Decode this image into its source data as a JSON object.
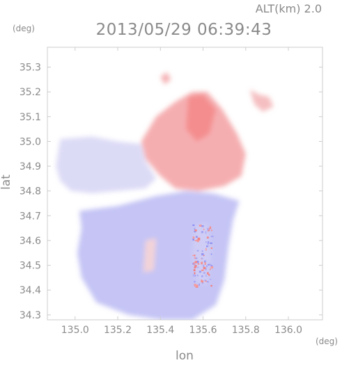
{
  "header": {
    "altitude_label": "ALT(km) 2.0",
    "timestamp": "2013/05/29 06:39:43"
  },
  "chart_data": {
    "type": "heatmap",
    "title": "2013/05/29 06:39:43",
    "subtitle": "ALT(km) 2.0",
    "xlabel": "lon",
    "ylabel": "lat",
    "x_unit": "(deg)",
    "y_unit": "(deg)",
    "xlim": [
      134.87,
      136.16
    ],
    "ylim": [
      34.28,
      35.38
    ],
    "x_ticks": [
      135.0,
      135.2,
      135.4,
      135.6,
      135.8,
      136.0
    ],
    "x_tick_labels": [
      "135.0",
      "135.2",
      "135.4",
      "135.6",
      "135.8",
      "136.0"
    ],
    "y_ticks": [
      34.3,
      34.4,
      34.5,
      34.6,
      34.7,
      34.8,
      34.9,
      35.0,
      35.1,
      35.2,
      35.3
    ],
    "y_tick_labels": [
      "34.3",
      "34.4",
      "34.5",
      "34.6",
      "34.7",
      "34.8",
      "34.9",
      "35.0",
      "35.1",
      "35.2",
      "35.3"
    ],
    "grid": false,
    "colors": {
      "toward": "#f47a7a",
      "neutral": "#f4f2f6",
      "away": "#8c8cf2",
      "frame": "#cccccc",
      "text": "#8a8a8a"
    },
    "regions": [
      {
        "name": "north-receding",
        "sign": "positive",
        "intensity": 0.6,
        "polygon": [
          [
            135.31,
            35.0
          ],
          [
            135.38,
            35.1
          ],
          [
            135.47,
            35.16
          ],
          [
            135.55,
            35.2
          ],
          [
            135.62,
            35.2
          ],
          [
            135.69,
            35.13
          ],
          [
            135.76,
            35.03
          ],
          [
            135.8,
            34.95
          ],
          [
            135.78,
            34.86
          ],
          [
            135.7,
            34.82
          ],
          [
            135.58,
            34.8
          ],
          [
            135.47,
            34.81
          ],
          [
            135.4,
            34.86
          ],
          [
            135.33,
            34.93
          ]
        ]
      },
      {
        "name": "north-receding-core",
        "sign": "positive",
        "intensity": 0.85,
        "polygon": [
          [
            135.53,
            35.18
          ],
          [
            135.6,
            35.19
          ],
          [
            135.66,
            35.13
          ],
          [
            135.63,
            35.03
          ],
          [
            135.57,
            35.0
          ],
          [
            135.52,
            35.05
          ]
        ]
      },
      {
        "name": "northeast-patch",
        "sign": "positive",
        "intensity": 0.45,
        "polygon": [
          [
            135.82,
            35.21
          ],
          [
            135.86,
            35.19
          ],
          [
            135.91,
            35.18
          ],
          [
            135.93,
            35.14
          ],
          [
            135.88,
            35.12
          ],
          [
            135.84,
            35.15
          ]
        ]
      },
      {
        "name": "northwest-patch",
        "sign": "positive",
        "intensity": 0.55,
        "polygon": [
          [
            135.4,
            35.26
          ],
          [
            135.43,
            35.28
          ],
          [
            135.45,
            35.25
          ],
          [
            135.42,
            35.23
          ]
        ]
      },
      {
        "name": "west-approaching",
        "sign": "negative",
        "intensity": 0.25,
        "polygon": [
          [
            134.93,
            35.01
          ],
          [
            135.08,
            35.02
          ],
          [
            135.2,
            35.0
          ],
          [
            135.31,
            34.99
          ],
          [
            135.33,
            34.92
          ],
          [
            135.38,
            34.85
          ],
          [
            135.33,
            34.81
          ],
          [
            135.2,
            34.8
          ],
          [
            135.08,
            34.79
          ],
          [
            134.98,
            34.8
          ],
          [
            134.93,
            34.84
          ],
          [
            134.91,
            34.9
          ]
        ]
      },
      {
        "name": "south-approaching",
        "sign": "negative",
        "intensity": 0.48,
        "polygon": [
          [
            135.02,
            34.72
          ],
          [
            135.2,
            34.74
          ],
          [
            135.38,
            34.78
          ],
          [
            135.52,
            34.8
          ],
          [
            135.65,
            34.79
          ],
          [
            135.77,
            34.76
          ],
          [
            135.74,
            34.68
          ],
          [
            135.72,
            34.58
          ],
          [
            135.7,
            34.44
          ],
          [
            135.66,
            34.34
          ],
          [
            135.55,
            34.28
          ],
          [
            135.4,
            34.28
          ],
          [
            135.25,
            34.3
          ],
          [
            135.1,
            34.35
          ],
          [
            135.03,
            34.45
          ],
          [
            135.01,
            34.55
          ],
          [
            135.03,
            34.65
          ]
        ]
      },
      {
        "name": "south-streaks",
        "sign": "positive",
        "intensity": 0.25,
        "polygon": [
          [
            135.33,
            34.6
          ],
          [
            135.38,
            34.61
          ],
          [
            135.37,
            34.48
          ],
          [
            135.32,
            34.47
          ]
        ]
      },
      {
        "name": "east-clutter",
        "sign": "mixed",
        "intensity": 0.6,
        "polygon": [
          [
            135.56,
            34.66
          ],
          [
            135.62,
            34.67
          ],
          [
            135.64,
            34.55
          ],
          [
            135.62,
            34.42
          ],
          [
            135.57,
            34.43
          ],
          [
            135.55,
            34.55
          ]
        ]
      }
    ]
  }
}
